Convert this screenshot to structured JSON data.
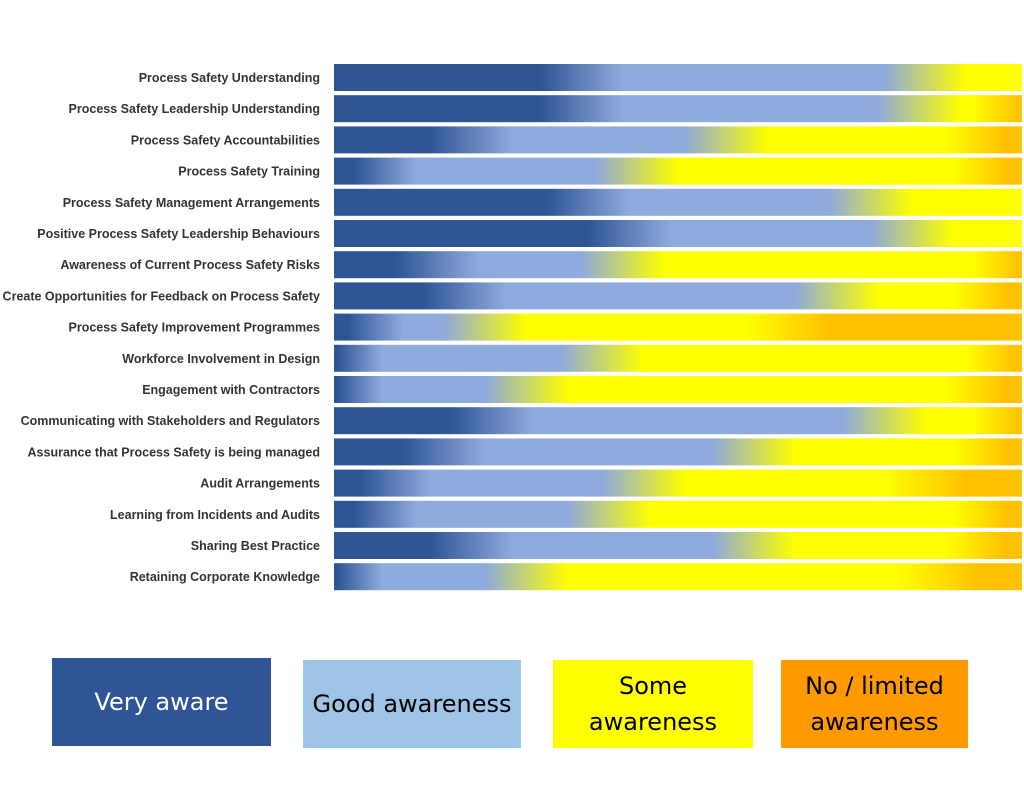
{
  "chart_data": {
    "type": "bar",
    "orientation": "horizontal",
    "stacked": true,
    "percent": true,
    "categories": [
      "Process Safety Understanding",
      "Process Safety Leadership Understanding",
      "Process Safety Accountabilities",
      "Process Safety Training",
      "Process Safety Management Arrangements",
      "Positive Process Safety Leadership Behaviours",
      "Awareness of Current Process Safety Risks",
      "Create Opportunities for Feedback on Process Safety",
      "Process Safety Improvement Programmes",
      "Workforce Involvement in Design",
      "Engagement with Contractors",
      "Communicating with Stakeholders and Regulators",
      "Assurance that Process Safety is being managed",
      "Audit Arrangements",
      "Learning from Incidents and Audits",
      "Sharing Best Practice",
      "Retaining Corporate Knowledge"
    ],
    "series": [
      {
        "name": "Very aware",
        "color": "#2f5597",
        "values": [
          36,
          36,
          20,
          6,
          37,
          43,
          15,
          19,
          4,
          1,
          1,
          23,
          16,
          8,
          6,
          20,
          1
        ]
      },
      {
        "name": "Good awareness",
        "color": "#8faadc",
        "values": [
          50,
          49,
          37,
          38,
          41,
          41,
          27,
          54,
          18,
          38,
          27,
          57,
          45,
          37,
          34,
          41,
          27
        ]
      },
      {
        "name": "Some awareness",
        "color": "#ffff00",
        "values": [
          14,
          14,
          38,
          52,
          22,
          16,
          57,
          23,
          44,
          59,
          67,
          19,
          35,
          41,
          56,
          34,
          60
        ]
      },
      {
        "name": "No / limited awareness",
        "color": "#ffc000",
        "values": [
          0,
          1,
          5,
          4,
          0,
          0,
          1,
          4,
          34,
          2,
          5,
          1,
          4,
          14,
          4,
          5,
          12
        ]
      }
    ],
    "xlim": [
      0,
      100
    ],
    "legend_position": "bottom",
    "grid": false
  },
  "legend": {
    "items": [
      {
        "label": "Very aware",
        "bg": "#2f5597",
        "fg": "#ffffff"
      },
      {
        "label": "Good awareness",
        "bg": "#9dc3e6",
        "fg": "#000000"
      },
      {
        "label": "Some awareness",
        "bg": "#ffff00",
        "fg": "#000000"
      },
      {
        "label": "No / limited awareness",
        "bg": "#ff9900",
        "fg": "#000000"
      }
    ]
  }
}
